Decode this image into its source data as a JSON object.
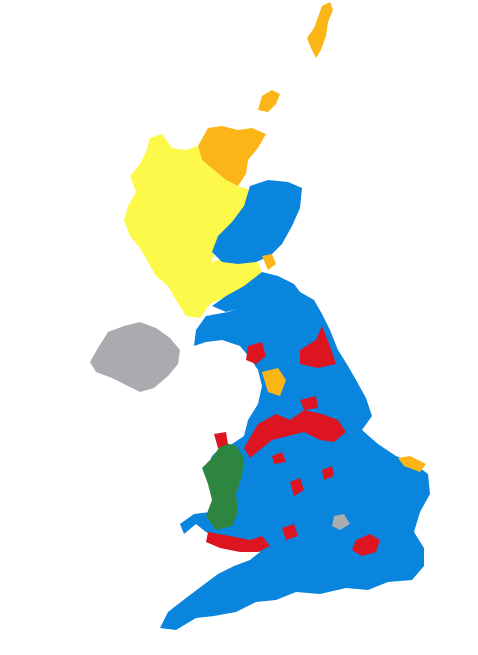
{
  "map": {
    "colors": {
      "background": "#ffffff",
      "blue": "#0a85de",
      "red": "#dd1521",
      "yellow": "#fdf94a",
      "orange": "#fbb516",
      "green": "#2e8540",
      "gray": "#a9abae"
    },
    "regions": [
      {
        "id": "northern-isles",
        "color": "orange"
      },
      {
        "id": "highlands-north",
        "color": "orange"
      },
      {
        "id": "highlands-west",
        "color": "yellow"
      },
      {
        "id": "scotland-central",
        "color": "yellow"
      },
      {
        "id": "north-east-scotland",
        "color": "blue"
      },
      {
        "id": "scottish-borders",
        "color": "blue"
      },
      {
        "id": "northern-ireland",
        "color": "gray"
      },
      {
        "id": "england",
        "color": "blue"
      },
      {
        "id": "wales-west",
        "color": "green"
      },
      {
        "id": "north-england-urban",
        "color": "red"
      },
      {
        "id": "south-wales",
        "color": "red"
      },
      {
        "id": "london",
        "color": "red"
      }
    ]
  }
}
